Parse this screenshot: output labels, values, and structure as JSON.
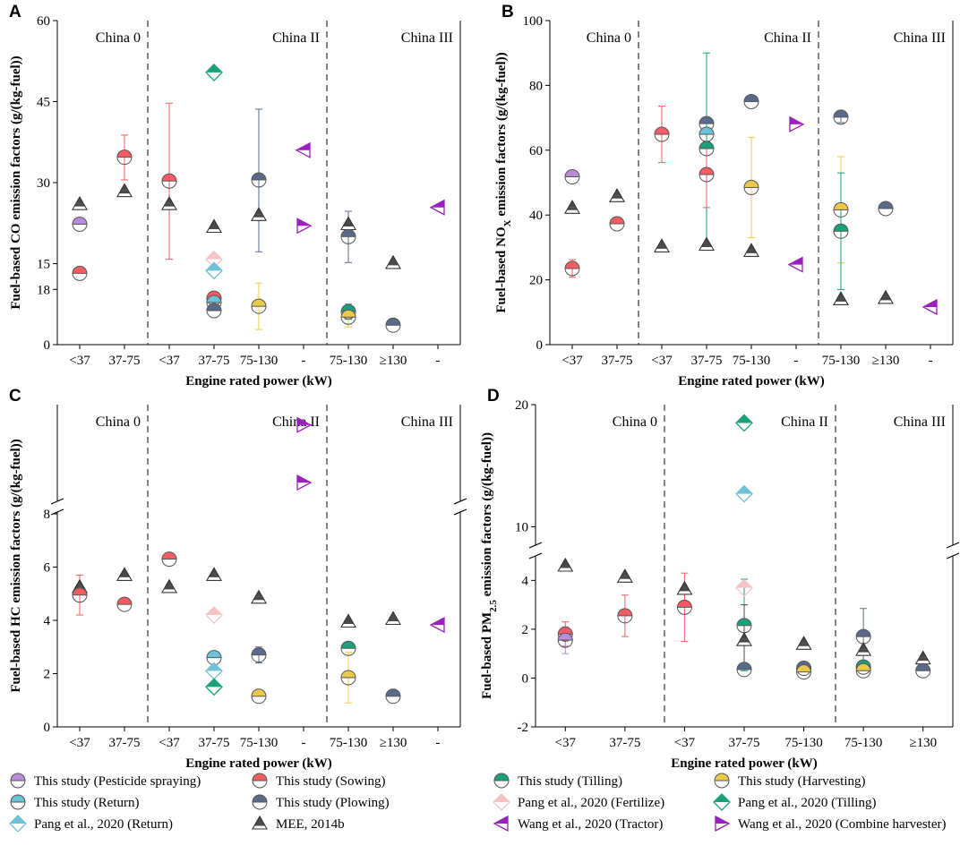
{
  "panels": [
    {
      "label": "A",
      "chart_data": {
        "type": "scatter",
        "xlabel": "Engine rated power (kW)",
        "ylabel": "Fuel-based CO emission factors (g/(kg-fuel))",
        "ylim": [
          0,
          60
        ],
        "yticks": [
          0,
          15,
          30,
          45,
          60
        ],
        "categories": [
          "<37",
          "37-75",
          "<37",
          "37-75",
          "75-130",
          "-",
          "75-130",
          "≥130",
          "-"
        ],
        "regions": [
          {
            "name": "China 0",
            "start": 0,
            "end": 1
          },
          {
            "name": "China II",
            "start": 2,
            "end": 5
          },
          {
            "name": "China III",
            "start": 6,
            "end": 8
          }
        ],
        "points": [
          {
            "s": "pesticide",
            "x": 0,
            "y": 22.3
          },
          {
            "s": "mee",
            "x": 0,
            "y": 26.0
          },
          {
            "s": "sowing",
            "x": 0,
            "y": 13.2
          },
          {
            "s": "sowing",
            "x": 1,
            "y": 34.7,
            "lo": 30.5,
            "hi": 38.8
          },
          {
            "s": "mee",
            "x": 1,
            "y": 28.4
          },
          {
            "s": "sowing",
            "x": 2,
            "y": 30.3,
            "lo": 15.8,
            "hi": 44.7
          },
          {
            "s": "mee",
            "x": 2,
            "y": 26.0
          },
          {
            "s": "pang_tilling",
            "x": 3,
            "y": 50.4
          },
          {
            "s": "mee",
            "x": 3,
            "y": 21.8
          },
          {
            "s": "pang_fertilize",
            "x": 3,
            "y": 15.8
          },
          {
            "s": "pang_return",
            "x": 3,
            "y": 13.7
          },
          {
            "s": "sowing",
            "x": 3,
            "y": 8.6
          },
          {
            "s": "return",
            "x": 3,
            "y": 7.8
          },
          {
            "s": "plowing",
            "x": 3,
            "y": 6.3
          },
          {
            "s": "plowing",
            "x": 4,
            "y": 30.5,
            "lo": 17.2,
            "hi": 43.6
          },
          {
            "s": "mee",
            "x": 4,
            "y": 24.0
          },
          {
            "s": "harvesting",
            "x": 4,
            "y": 7.1,
            "lo": 2.8,
            "hi": 11.4
          },
          {
            "s": "wang_tractor",
            "x": 5,
            "y": 36.0
          },
          {
            "s": "wang_combine",
            "x": 5,
            "y": 22.0
          },
          {
            "s": "mee",
            "x": 6,
            "y": 22.3
          },
          {
            "s": "plowing",
            "x": 6,
            "y": 20.0,
            "lo": 15.2,
            "hi": 24.7
          },
          {
            "s": "tilling",
            "x": 6,
            "y": 6.1,
            "lo": 4.7,
            "hi": 7.5
          },
          {
            "s": "harvesting",
            "x": 6,
            "y": 5.1,
            "lo": 3.3,
            "hi": 6.9
          },
          {
            "s": "mee",
            "x": 7,
            "y": 15.1
          },
          {
            "s": "plowing",
            "x": 7,
            "y": 3.6
          },
          {
            "s": "wang_tractor",
            "x": 8,
            "y": 25.4
          }
        ]
      }
    },
    {
      "label": "B",
      "chart_data": {
        "type": "scatter",
        "xlabel": "Engine rated power (kW)",
        "ylabel": "Fuel-based NOX emission factors (g/(kg-fuel))",
        "ylabel_main": "Fuel-based NO",
        "ylabel_sub": "X",
        "ylabel_tail": " emission factors (g/(kg-fuel))",
        "ylim": [
          0,
          100
        ],
        "yticks": [
          0,
          20,
          40,
          60,
          80,
          100
        ],
        "categories": [
          "<37",
          "37-75",
          "<37",
          "37-75",
          "75-130",
          "-",
          "75-130",
          "≥130",
          "-"
        ],
        "regions": [
          {
            "name": "China 0",
            "start": 0,
            "end": 1
          },
          {
            "name": "China II",
            "start": 2,
            "end": 5
          },
          {
            "name": "China III",
            "start": 6,
            "end": 8
          }
        ],
        "points": [
          {
            "s": "pesticide",
            "x": 0,
            "y": 51.8
          },
          {
            "s": "mee",
            "x": 0,
            "y": 42.2
          },
          {
            "s": "sowing",
            "x": 0,
            "y": 23.5,
            "lo": 20.8,
            "hi": 26.2
          },
          {
            "s": "mee",
            "x": 1,
            "y": 45.8
          },
          {
            "s": "sowing",
            "x": 1,
            "y": 37.3
          },
          {
            "s": "sowing",
            "x": 2,
            "y": 64.9,
            "lo": 56.2,
            "hi": 73.6
          },
          {
            "s": "mee",
            "x": 2,
            "y": 30.3
          },
          {
            "s": "plowing",
            "x": 3,
            "y": 68.2
          },
          {
            "s": "return",
            "x": 3,
            "y": 64.9
          },
          {
            "s": "tilling",
            "x": 3,
            "y": 60.5,
            "lo": 31.0,
            "hi": 90.0
          },
          {
            "s": "sowing",
            "x": 3,
            "y": 52.5,
            "lo": 42.3,
            "hi": 62.7
          },
          {
            "s": "mee",
            "x": 3,
            "y": 30.8
          },
          {
            "s": "plowing",
            "x": 4,
            "y": 75.0
          },
          {
            "s": "harvesting",
            "x": 4,
            "y": 48.5,
            "lo": 33.0,
            "hi": 64.0
          },
          {
            "s": "mee",
            "x": 4,
            "y": 28.9
          },
          {
            "s": "wang_combine",
            "x": 5,
            "y": 68.0
          },
          {
            "s": "wang_tractor",
            "x": 5,
            "y": 24.7
          },
          {
            "s": "plowing",
            "x": 6,
            "y": 70.2,
            "lo": 68.5,
            "hi": 71.9
          },
          {
            "s": "harvesting",
            "x": 6,
            "y": 41.6,
            "lo": 25.2,
            "hi": 58.0
          },
          {
            "s": "tilling",
            "x": 6,
            "y": 35.0,
            "lo": 17.0,
            "hi": 53.0
          },
          {
            "s": "mee",
            "x": 6,
            "y": 14.0
          },
          {
            "s": "plowing",
            "x": 7,
            "y": 42.0
          },
          {
            "s": "mee",
            "x": 7,
            "y": 14.4
          },
          {
            "s": "wang_tractor",
            "x": 8,
            "y": 11.6
          }
        ]
      }
    },
    {
      "label": "C",
      "chart_data": {
        "type": "scatter",
        "xlabel": "Engine rated power (kW)",
        "ylabel": "Fuel-based HC emission factors (g/(kg-fuel))",
        "ylim": [
          0,
          18
        ],
        "axis_break": true,
        "yticks": [
          0,
          2,
          4,
          6,
          8,
          18
        ],
        "categories": [
          "<37",
          "37-75",
          "<37",
          "37-75",
          "75-130",
          "-",
          "75-130",
          "≥130",
          "-"
        ],
        "regions": [
          {
            "name": "China 0",
            "start": 0,
            "end": 1
          },
          {
            "name": "China II",
            "start": 2,
            "end": 5
          },
          {
            "name": "China III",
            "start": 6,
            "end": 8
          }
        ],
        "points": [
          {
            "s": "mee",
            "x": 0,
            "y": 5.25
          },
          {
            "s": "sowing",
            "x": 0,
            "y": 4.95,
            "lo": 4.2,
            "hi": 5.7
          },
          {
            "s": "mee",
            "x": 1,
            "y": 5.7
          },
          {
            "s": "sowing",
            "x": 1,
            "y": 4.6
          },
          {
            "s": "sowing",
            "x": 2,
            "y": 6.3
          },
          {
            "s": "mee",
            "x": 2,
            "y": 5.25
          },
          {
            "s": "mee",
            "x": 3,
            "y": 5.7
          },
          {
            "s": "pang_fertilize",
            "x": 3,
            "y": 4.2
          },
          {
            "s": "return",
            "x": 3,
            "y": 2.6
          },
          {
            "s": "pang_return",
            "x": 3,
            "y": 2.1
          },
          {
            "s": "pang_tilling",
            "x": 3,
            "y": 1.5
          },
          {
            "s": "mee",
            "x": 4,
            "y": 4.85
          },
          {
            "s": "plowing",
            "x": 4,
            "y": 2.7,
            "lo": 2.4,
            "hi": 3.0
          },
          {
            "s": "harvesting",
            "x": 4,
            "y": 1.15
          },
          {
            "s": "wang_combine",
            "x": 5,
            "y": 14.0
          },
          {
            "s": "wang_combine",
            "x": 5,
            "y": 12.3
          },
          {
            "s": "mee",
            "x": 6,
            "y": 3.95
          },
          {
            "s": "tilling",
            "x": 6,
            "y": 2.95
          },
          {
            "s": "harvesting",
            "x": 6,
            "y": 1.85,
            "lo": 0.9,
            "hi": 2.8
          },
          {
            "s": "mee",
            "x": 7,
            "y": 4.05
          },
          {
            "s": "plowing",
            "x": 7,
            "y": 1.15
          },
          {
            "s": "wang_tractor",
            "x": 8,
            "y": 8.1
          }
        ]
      }
    },
    {
      "label": "D",
      "chart_data": {
        "type": "scatter",
        "xlabel": "Engine rated power (kW)",
        "ylabel": "Fuel-based PM2.5 emission factors (g/(kg-fuel))",
        "ylabel_main": "Fuel-based PM",
        "ylabel_sub": "2.5",
        "ylabel_tail": " emission factors (g/(kg-fuel))",
        "ylim": [
          -2,
          20
        ],
        "axis_break": true,
        "yticks": [
          -2,
          0,
          2,
          4,
          10,
          20
        ],
        "categories": [
          "<37",
          "37-75",
          "<37",
          "37-75",
          "75-130",
          "75-130",
          "≥130"
        ],
        "regions": [
          {
            "name": "China 0",
            "start": 0,
            "end": 1
          },
          {
            "name": "China II",
            "start": 2,
            "end": 4
          },
          {
            "name": "China III",
            "start": 5,
            "end": 6
          }
        ],
        "points": [
          {
            "s": "mee",
            "x": 0,
            "y": 4.6
          },
          {
            "s": "sowing",
            "x": 0,
            "y": 1.8,
            "lo": 1.3,
            "hi": 2.3
          },
          {
            "s": "pesticide",
            "x": 0,
            "y": 1.55,
            "lo": 1.0,
            "hi": 2.1
          },
          {
            "s": "mee",
            "x": 1,
            "y": 4.15
          },
          {
            "s": "sowing",
            "x": 1,
            "y": 2.55,
            "lo": 1.7,
            "hi": 3.4
          },
          {
            "s": "mee",
            "x": 2,
            "y": 3.65
          },
          {
            "s": "sowing",
            "x": 2,
            "y": 2.9,
            "lo": 1.5,
            "hi": 4.3
          },
          {
            "s": "pang_tilling",
            "x": 3,
            "y": 18.5
          },
          {
            "s": "pang_return",
            "x": 3,
            "y": 12.7
          },
          {
            "s": "pang_fertilize",
            "x": 3,
            "y": 5.0
          },
          {
            "s": "tilling",
            "x": 3,
            "y": 2.15,
            "lo": 0.3,
            "hi": 4.05
          },
          {
            "s": "mee",
            "x": 3,
            "y": 1.55,
            "lo": 0.4,
            "hi": 3.0
          },
          {
            "s": "plowing",
            "x": 3,
            "y": 0.35
          },
          {
            "s": "mee",
            "x": 4,
            "y": 1.4
          },
          {
            "s": "plowing",
            "x": 4,
            "y": 0.4
          },
          {
            "s": "harvesting",
            "x": 4,
            "y": 0.25
          },
          {
            "s": "plowing",
            "x": 5,
            "y": 1.7,
            "lo": 0.6,
            "hi": 2.85
          },
          {
            "s": "mee",
            "x": 5,
            "y": 1.15
          },
          {
            "s": "tilling",
            "x": 5,
            "y": 0.45
          },
          {
            "s": "harvesting",
            "x": 5,
            "y": 0.3
          },
          {
            "s": "mee",
            "x": 6,
            "y": 0.8
          },
          {
            "s": "plowing",
            "x": 6,
            "y": 0.3
          }
        ]
      }
    }
  ],
  "series": {
    "pesticide": {
      "label": "This study (Pesticide spraying)",
      "marker": "circle",
      "color": "#b98bd9"
    },
    "sowing": {
      "label": "This study (Sowing)",
      "marker": "circle",
      "color": "#f25c62"
    },
    "tilling": {
      "label": "This study (Tilling)",
      "marker": "circle",
      "color": "#1aa17a"
    },
    "harvesting": {
      "label": "This study (Harvesting)",
      "marker": "circle",
      "color": "#ecc94b"
    },
    "return": {
      "label": "This study (Return)",
      "marker": "circle",
      "color": "#6ec1d6"
    },
    "plowing": {
      "label": "This study (Plowing)",
      "marker": "circle",
      "color": "#5a6a8a"
    },
    "pang_fertilize": {
      "label": "Pang et al., 2020 (Fertilize)",
      "marker": "diamond",
      "color": "#f7c4c4"
    },
    "pang_tilling": {
      "label": "Pang et al., 2020 (Tilling)",
      "marker": "diamond",
      "color": "#1aa17a"
    },
    "pang_return": {
      "label": "Pang et al., 2020 (Return)",
      "marker": "diamond",
      "color": "#6ec1d6"
    },
    "mee": {
      "label": "MEE, 2014b",
      "marker": "triangle",
      "color": "#4a4a4a"
    },
    "wang_tractor": {
      "label": "Wang et al., 2020 (Tractor)",
      "marker": "tri-left",
      "color": "#9b1fbf"
    },
    "wang_combine": {
      "label": "Wang et al., 2020 (Combine harvester)",
      "marker": "tri-right",
      "color": "#9b1fbf"
    }
  },
  "legend_order": [
    "pesticide",
    "sowing",
    "tilling",
    "harvesting",
    "return",
    "plowing",
    "pang_fertilize",
    "pang_tilling",
    "pang_return",
    "mee",
    "wang_tractor",
    "wang_combine"
  ]
}
